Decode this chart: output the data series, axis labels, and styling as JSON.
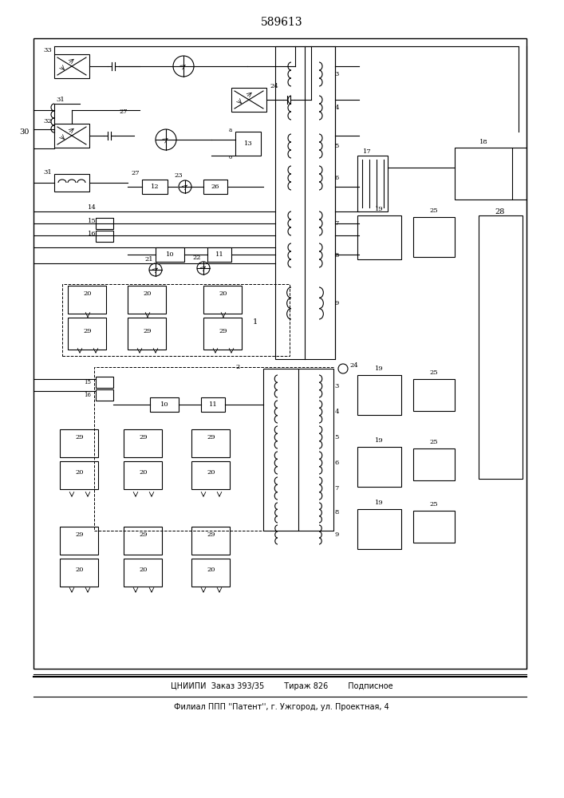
{
  "title": "589613",
  "footer_line1": "ЦНИИПИ  Заказ 393/35        Тираж 826        Подписное",
  "footer_line2": "Филиал ППП ''Патент'', г. Ужгород, ул. Проектная, 4",
  "bg_color": "#ffffff",
  "line_color": "#000000"
}
